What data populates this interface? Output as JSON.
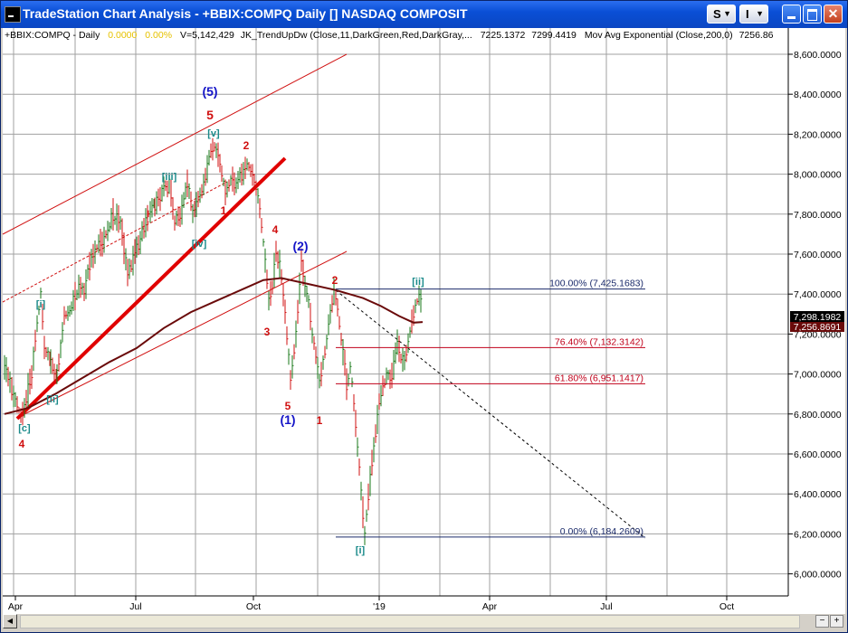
{
  "window": {
    "title": "TradeStation Chart Analysis - +BBIX:COMPQ Daily [] NASDAQ COMPOSIT",
    "s_button": "S",
    "i_button": "I",
    "minimize": "_",
    "maximize": "□",
    "close": "✕"
  },
  "header": {
    "symbol": "+BBIX:COMPQ - Daily",
    "change": "0.0000",
    "change_pct": "0.00%",
    "volume": "V=5,142,429",
    "indicator1": "JK_TrendUpDw (Close,11,DarkGreen,Red,DarkGray,...",
    "ind_val1": "7225.1372",
    "ind_val2": "7299.4419",
    "indicator2": "Mov Avg Exponential (Close,200,0)",
    "ma_value": "7256.86"
  },
  "axis": {
    "y_labels": [
      "8,600.0000",
      "8,400.0000",
      "8,200.0000",
      "8,000.0000",
      "7,800.0000",
      "7,600.0000",
      "7,400.0000",
      "7,200.0000",
      "7,000.0000",
      "6,800.0000",
      "6,600.0000",
      "6,400.0000",
      "6,200.0000",
      "6,000.0000"
    ],
    "x_labels": [
      "Apr",
      "Jul",
      "Oct",
      "'19",
      "Apr",
      "Jul",
      "Oct"
    ],
    "last_price": "7,298.1982",
    "ma_price": "7,256.8691"
  },
  "fibonacci": [
    {
      "label": "100.00% (7,425.1683)",
      "value": 7425.1683,
      "color": "#1a2a6a"
    },
    {
      "label": "76.40% (7,132.3142)",
      "value": 7132.3142,
      "color": "#c0001a"
    },
    {
      "label": "61.80% (6,951.1417)",
      "value": 6951.1417,
      "color": "#c0001a"
    },
    {
      "label": "0.00% (6,184.2609)",
      "value": 6184.2609,
      "color": "#1a2a6a"
    }
  ],
  "wave_labels": [
    {
      "text": "(5)",
      "color": "#1515c8",
      "size": 14
    },
    {
      "text": "5",
      "color": "#d01010",
      "size": 14
    },
    {
      "text": "[v]",
      "color": "#1a8a8a",
      "size": 11
    },
    {
      "text": "2",
      "color": "#d01010",
      "size": 12
    },
    {
      "text": "[iii]",
      "color": "#1a8a8a",
      "size": 11
    },
    {
      "text": "1",
      "color": "#d01010",
      "size": 12
    },
    {
      "text": "[iv]",
      "color": "#1a8a8a",
      "size": 11
    },
    {
      "text": "4",
      "color": "#d01010",
      "size": 12
    },
    {
      "text": "(2)",
      "color": "#1515c8",
      "size": 14
    },
    {
      "text": "2",
      "color": "#d01010",
      "size": 12
    },
    {
      "text": "[ii]",
      "color": "#1a8a8a",
      "size": 11
    },
    {
      "text": "[i]",
      "color": "#1a8a8a",
      "size": 11
    },
    {
      "text": "3",
      "color": "#d01010",
      "size": 12
    },
    {
      "text": "[ii]",
      "color": "#1a8a8a",
      "size": 11
    },
    {
      "text": "[c]",
      "color": "#1a8a8a",
      "size": 11
    },
    {
      "text": "4",
      "color": "#d01010",
      "size": 12
    },
    {
      "text": "5",
      "color": "#d01010",
      "size": 12
    },
    {
      "text": "(1)",
      "color": "#1515c8",
      "size": 14
    },
    {
      "text": "1",
      "color": "#d01010",
      "size": 12
    },
    {
      "text": "[i]",
      "color": "#1a8a8a",
      "size": 11
    }
  ],
  "colors": {
    "background": "#ffffff",
    "grid": "#9a9a9a",
    "up_bar": "#1a7a1a",
    "down_bar": "#d01010",
    "moving_average": "#6a0a0a",
    "trendline": "#d01010",
    "price_tag": "#000000",
    "ma_tag": "#6a0a0a"
  }
}
